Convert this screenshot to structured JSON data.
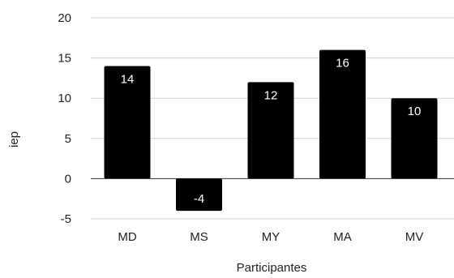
{
  "chart_data": {
    "type": "bar",
    "categories": [
      "MD",
      "MS",
      "MY",
      "MA",
      "MV"
    ],
    "values": [
      14,
      -4,
      12,
      16,
      10
    ],
    "data_labels": [
      "14",
      "-4",
      "12",
      "16",
      "10"
    ],
    "title": "",
    "xlabel": "Participantes",
    "ylabel": "iep",
    "ylim": [
      -5,
      20
    ],
    "yticks": [
      -5,
      0,
      5,
      10,
      15,
      20
    ],
    "grid": true,
    "bar_color": "#000000",
    "label_color": "#ffffff"
  }
}
